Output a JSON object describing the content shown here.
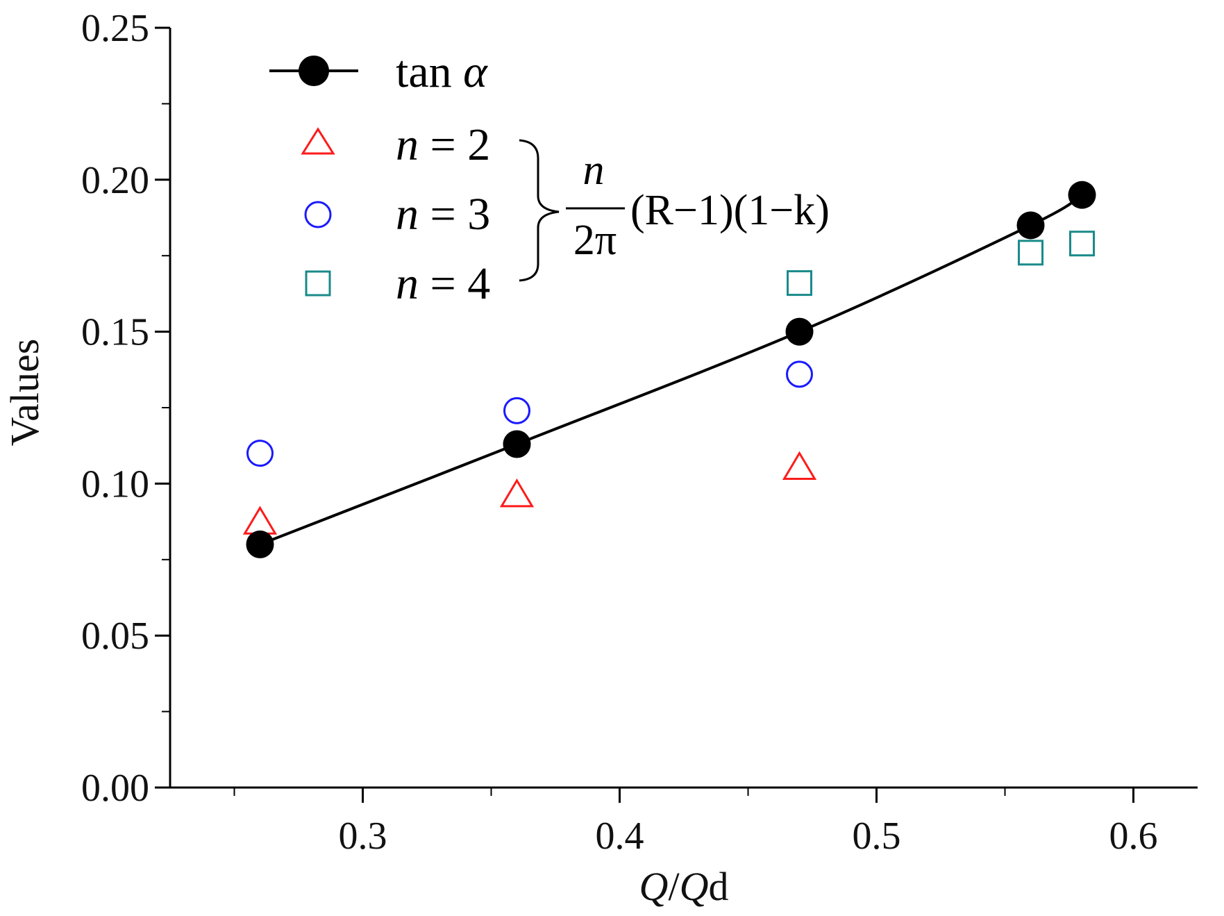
{
  "chart_data": {
    "type": "line",
    "title": "",
    "xlabel": "Q/Qd",
    "xlabel_parts": {
      "q": "Q",
      "slash": "/",
      "qd": "Q",
      "sub": "d"
    },
    "ylabel": "Values",
    "xlim": [
      0.225,
      0.625
    ],
    "ylim": [
      0.0,
      0.25
    ],
    "xticks": [
      0.3,
      0.4,
      0.5,
      0.6
    ],
    "xtick_labels": [
      "0.3",
      "0.4",
      "0.5",
      "0.6"
    ],
    "yticks": [
      0.0,
      0.05,
      0.1,
      0.15,
      0.2,
      0.25
    ],
    "ytick_labels": [
      "0.00",
      "0.05",
      "0.10",
      "0.15",
      "0.20",
      "0.25"
    ],
    "series": [
      {
        "name": "tan α",
        "marker": "filled-circle",
        "line": true,
        "color": "#000000",
        "x": [
          0.26,
          0.36,
          0.47,
          0.56,
          0.58
        ],
        "y": [
          0.08,
          0.113,
          0.15,
          0.185,
          0.195
        ]
      },
      {
        "name": "n = 2",
        "marker": "open-triangle",
        "line": false,
        "color": "#ff1a1a",
        "x": [
          0.26,
          0.36,
          0.47
        ],
        "y": [
          0.087,
          0.096,
          0.105
        ]
      },
      {
        "name": "n = 3",
        "marker": "open-circle",
        "line": false,
        "color": "#1a1aff",
        "x": [
          0.26,
          0.36,
          0.47
        ],
        "y": [
          0.11,
          0.124,
          0.136
        ]
      },
      {
        "name": "n = 4",
        "marker": "open-square",
        "line": false,
        "color": "#1a8a8a",
        "x": [
          0.47,
          0.56,
          0.58
        ],
        "y": [
          0.166,
          0.176,
          0.179
        ]
      }
    ],
    "legend": {
      "placement": "top-left",
      "entries": [
        {
          "var": "tan",
          "sym": "α"
        },
        {
          "var": "n",
          "rest": " = 2"
        },
        {
          "var": "n",
          "rest": " = 3"
        },
        {
          "var": "n",
          "rest": " = 4"
        }
      ],
      "formula": {
        "numerator": "n",
        "denominator": "2π",
        "terms": "(R−1)(1−k)"
      }
    }
  }
}
